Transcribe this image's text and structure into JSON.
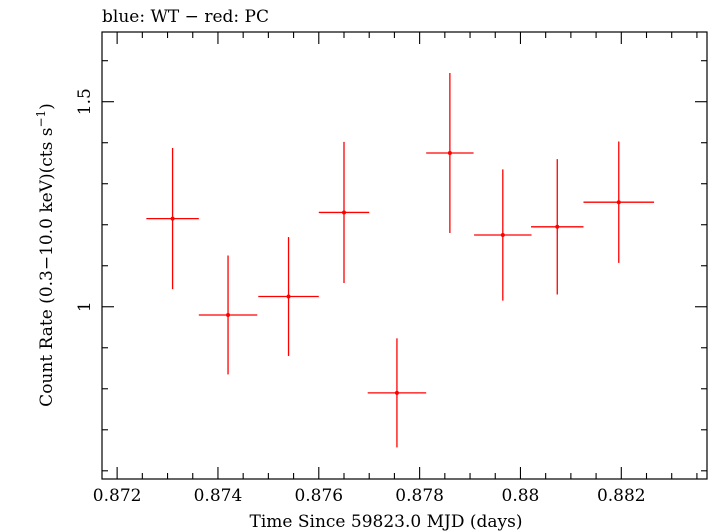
{
  "chart_data": {
    "type": "scatter",
    "title": "blue: WT − red: PC",
    "xlabel": "Time Since 59823.0 MJD (days)",
    "ylabel_main": "Count Rate (0.3−10.0 keV)(cts s",
    "ylabel_sup": "−1",
    "ylabel_close": ")",
    "xlim": [
      0.8717,
      0.8837
    ],
    "ylim": [
      0.58,
      1.67
    ],
    "x_ticks": [
      {
        "value": 0.872,
        "label": "0.872"
      },
      {
        "value": 0.874,
        "label": "0.874"
      },
      {
        "value": 0.876,
        "label": "0.876"
      },
      {
        "value": 0.878,
        "label": "0.878"
      },
      {
        "value": 0.88,
        "label": "0.88"
      },
      {
        "value": 0.882,
        "label": "0.882"
      }
    ],
    "x_minor_step": 0.0005,
    "y_ticks": [
      {
        "value": 1.0,
        "label": "1"
      },
      {
        "value": 1.5,
        "label": "1.5"
      }
    ],
    "y_minor_step": 0.1,
    "grid": false,
    "series": [
      {
        "color": "#ff0000",
        "points": [
          {
            "x": 0.8731,
            "xerr": 0.00052,
            "y": 1.215,
            "yerr_lo": 0.172,
            "yerr_hi": 0.172
          },
          {
            "x": 0.8742,
            "xerr": 0.00058,
            "y": 0.98,
            "yerr_lo": 0.145,
            "yerr_hi": 0.145
          },
          {
            "x": 0.8754,
            "xerr": 0.0006,
            "y": 1.025,
            "yerr_lo": 0.145,
            "yerr_hi": 0.145
          },
          {
            "x": 0.8765,
            "xerr": 0.0005,
            "y": 1.23,
            "yerr_lo": 0.172,
            "yerr_hi": 0.172
          },
          {
            "x": 0.87755,
            "xerr": 0.00058,
            "y": 0.79,
            "yerr_lo": 0.133,
            "yerr_hi": 0.133
          },
          {
            "x": 0.8786,
            "xerr": 0.00047,
            "y": 1.375,
            "yerr_lo": 0.195,
            "yerr_hi": 0.195
          },
          {
            "x": 0.87965,
            "xerr": 0.00057,
            "y": 1.175,
            "yerr_lo": 0.16,
            "yerr_hi": 0.16
          },
          {
            "x": 0.88073,
            "xerr": 0.00052,
            "y": 1.195,
            "yerr_lo": 0.165,
            "yerr_hi": 0.165
          },
          {
            "x": 0.88195,
            "xerr": 0.0007,
            "y": 1.255,
            "yerr_lo": 0.148,
            "yerr_hi": 0.148
          }
        ]
      }
    ]
  }
}
